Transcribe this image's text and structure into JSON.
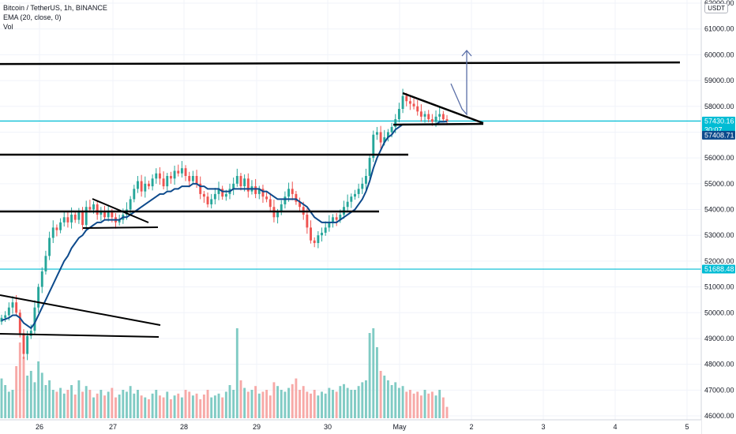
{
  "header": {
    "symbol_line": "Bitcoin / TetherUS, 1h, BINANCE",
    "ema_line": "EMA (20, close, 0)",
    "vol_line": "Vol",
    "currency": "USDT"
  },
  "colors": {
    "up": "#26a69a",
    "down": "#ef5350",
    "vol_up": "#80cbc4",
    "vol_down": "#f7a9a7",
    "ema": "#0d4a8c",
    "hline": "#00bcd4",
    "trend": "#000000",
    "projection": "#5b6fa8"
  },
  "chart_data": {
    "type": "candlestick",
    "title": "Bitcoin / TetherUS, 1h, BINANCE",
    "ylim": [
      46000,
      62000
    ],
    "y_ticks": [
      46000,
      47000,
      48000,
      49000,
      50000,
      51000,
      52000,
      53000,
      54000,
      55000,
      56000,
      57000,
      58000,
      59000,
      60000,
      61000,
      62000
    ],
    "x_ticks": [
      "26",
      "27",
      "28",
      "29",
      "30",
      "May",
      "2",
      "3",
      "4",
      "5"
    ],
    "closes": [
      49800,
      49900,
      50200,
      50400,
      50000,
      49200,
      48400,
      49100,
      49300,
      50200,
      51000,
      51600,
      52200,
      52900,
      53300,
      53200,
      53500,
      53700,
      53500,
      53800,
      53600,
      53900,
      53400,
      54100,
      54000,
      54200,
      53800,
      53900,
      53700,
      53900,
      53700,
      53500,
      53600,
      53800,
      54000,
      54400,
      54800,
      55100,
      54700,
      55000,
      54900,
      55200,
      55400,
      55200,
      54900,
      55300,
      55200,
      55500,
      55400,
      55600,
      55300,
      55100,
      55300,
      55000,
      54600,
      54500,
      54200,
      54400,
      54600,
      54800,
      54500,
      54600,
      54800,
      55000,
      55300,
      54900,
      55200,
      54700,
      54900,
      54600,
      54800,
      54500,
      54400,
      54100,
      53700,
      53900,
      54200,
      54500,
      54800,
      54600,
      54300,
      54100,
      53800,
      53300,
      52800,
      52700,
      53000,
      53100,
      53300,
      53500,
      53700,
      53600,
      53800,
      54100,
      54300,
      54500,
      54600,
      54800,
      55000,
      55300,
      56000,
      56900,
      57000,
      56600,
      56800,
      57000,
      57200,
      57500,
      57900,
      58400,
      58200,
      58100,
      58000,
      57800,
      57600,
      57700,
      57500,
      57400,
      57600,
      57700,
      57500,
      57430
    ],
    "ema": [
      49700,
      49750,
      49800,
      49900,
      49900,
      49800,
      49600,
      49500,
      49400,
      49600,
      49900,
      50200,
      50500,
      50800,
      51100,
      51400,
      51700,
      52000,
      52200,
      52500,
      52700,
      52900,
      53000,
      53200,
      53300,
      53400,
      53500,
      53500,
      53600,
      53600,
      53600,
      53600,
      53600,
      53700,
      53700,
      53800,
      53900,
      54000,
      54100,
      54200,
      54300,
      54400,
      54500,
      54600,
      54600,
      54700,
      54700,
      54800,
      54800,
      54900,
      54900,
      54900,
      55000,
      55000,
      54900,
      54900,
      54800,
      54800,
      54800,
      54800,
      54700,
      54700,
      54700,
      54800,
      54800,
      54800,
      54800,
      54800,
      54800,
      54800,
      54800,
      54700,
      54700,
      54600,
      54500,
      54400,
      54400,
      54400,
      54400,
      54400,
      54400,
      54300,
      54200,
      54100,
      53900,
      53700,
      53600,
      53500,
      53500,
      53500,
      53500,
      53500,
      53600,
      53700,
      53800,
      53900,
      54000,
      54200,
      54400,
      54700,
      55100,
      55600,
      56000,
      56300,
      56600,
      56800,
      56900,
      57100,
      57200,
      57300,
      57300,
      57300,
      57300,
      57300,
      57300,
      57300,
      57300,
      57300,
      57300,
      57400,
      57400,
      57410
    ],
    "volumes": [
      0.42,
      0.35,
      0.28,
      0.3,
      0.55,
      0.8,
      0.65,
      0.45,
      0.5,
      0.38,
      0.6,
      0.48,
      0.35,
      0.4,
      0.3,
      0.28,
      0.32,
      0.26,
      0.3,
      0.35,
      0.25,
      0.4,
      0.28,
      0.34,
      0.3,
      0.22,
      0.26,
      0.3,
      0.24,
      0.28,
      0.32,
      0.22,
      0.25,
      0.3,
      0.28,
      0.34,
      0.26,
      0.3,
      0.24,
      0.22,
      0.2,
      0.26,
      0.3,
      0.24,
      0.22,
      0.28,
      0.2,
      0.24,
      0.26,
      0.22,
      0.3,
      0.28,
      0.24,
      0.26,
      0.2,
      0.25,
      0.3,
      0.22,
      0.24,
      0.26,
      0.22,
      0.28,
      0.35,
      0.3,
      0.95,
      0.4,
      0.32,
      0.28,
      0.3,
      0.34,
      0.26,
      0.28,
      0.3,
      0.24,
      0.38,
      0.34,
      0.3,
      0.28,
      0.32,
      0.36,
      0.42,
      0.3,
      0.34,
      0.28,
      0.26,
      0.3,
      0.24,
      0.28,
      0.26,
      0.32,
      0.3,
      0.28,
      0.34,
      0.36,
      0.32,
      0.3,
      0.3,
      0.34,
      0.38,
      0.4,
      0.9,
      0.95,
      0.75,
      0.5,
      0.45,
      0.4,
      0.35,
      0.38,
      0.32,
      0.34,
      0.28,
      0.3,
      0.26,
      0.28,
      0.24,
      0.3,
      0.26,
      0.28,
      0.24,
      0.3,
      0.22,
      0.12
    ],
    "horizontal_lines": [
      {
        "price": 59700,
        "kind": "resistance"
      },
      {
        "price": 57430.16,
        "kind": "current"
      },
      {
        "price": 56100,
        "kind": "support"
      },
      {
        "price": 53950,
        "kind": "support"
      },
      {
        "price": 51688.48,
        "kind": "marker"
      }
    ],
    "price_labels": [
      {
        "text": "57430.16",
        "sub": "30:07",
        "price": 57430.16
      },
      {
        "text": "57408.71",
        "price": 57408.71
      },
      {
        "text": "51688.48",
        "price": 51688.48
      }
    ]
  }
}
